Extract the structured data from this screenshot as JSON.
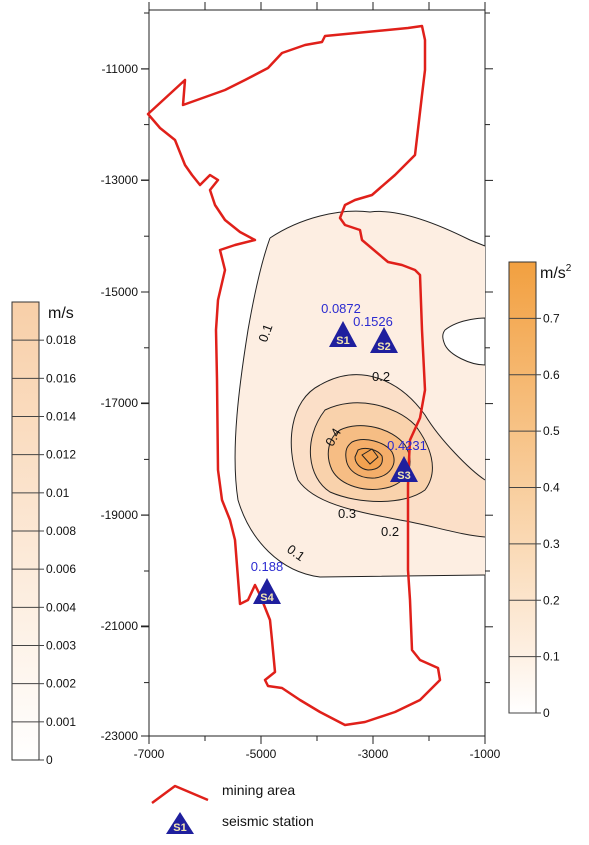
{
  "map": {
    "x_ticks": [
      "-7000",
      "-5000",
      "-3000",
      "-1000"
    ],
    "y_ticks": [
      "-11000",
      "-13000",
      "-15000",
      "-17000",
      "-19000",
      "-21000",
      "-23000"
    ],
    "contour_labels": [
      "0.1",
      "0.1",
      "0.2",
      "0.2",
      "0.3",
      "0.4"
    ],
    "stations": [
      {
        "id": "S1",
        "value": "0.0872"
      },
      {
        "id": "S2",
        "value": "0.1526"
      },
      {
        "id": "S3",
        "value": "0.4231"
      },
      {
        "id": "S4",
        "value": "0.188"
      }
    ]
  },
  "legend_left": {
    "unit": "m/s",
    "labels": [
      "0.018",
      "0.016",
      "0.014",
      "0.012",
      "0.01",
      "0.008",
      "0.006",
      "0.004",
      "0.003",
      "0.002",
      "0.001",
      "0"
    ]
  },
  "legend_right": {
    "unit_base": "m/s",
    "unit_exp": "2",
    "labels": [
      "0.7",
      "0.6",
      "0.5",
      "0.4",
      "0.3",
      "0.2",
      "0.1",
      "0"
    ]
  },
  "key": {
    "mining_area_label": "mining area",
    "station_label": "seismic station",
    "station_symbol": "S1"
  },
  "colors": {
    "boundary": "#e0201a",
    "station": "#1f1f9e",
    "station_text": "#f2e6b0",
    "value_text": "#2b2bd0",
    "fill_light": "#fdeee2",
    "fill_mid": "#f9d2ac",
    "fill_dark": "#f4a458"
  }
}
